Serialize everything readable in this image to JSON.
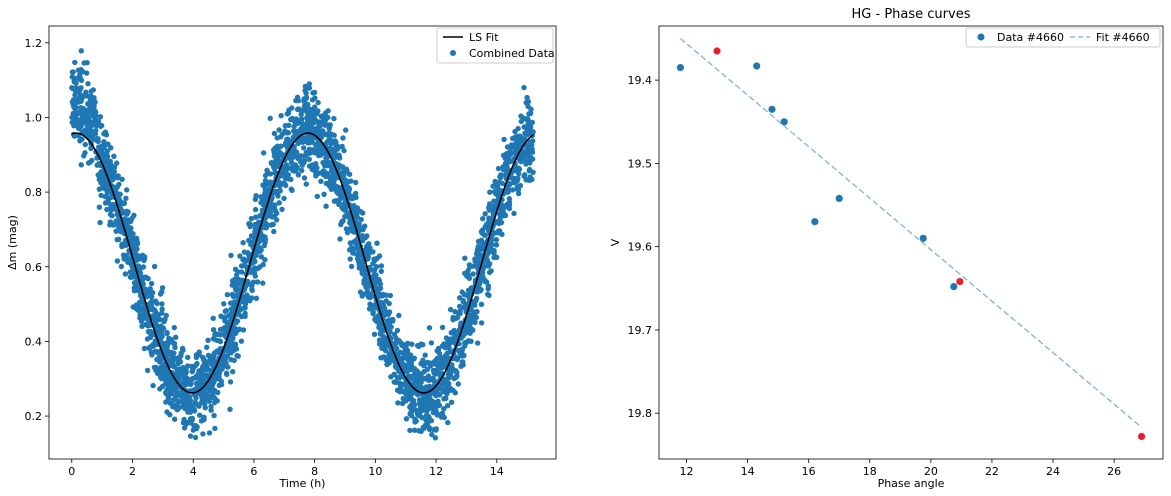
{
  "chart_data": [
    {
      "type": "scatter",
      "title": "",
      "xlabel": "Time (h)",
      "ylabel": "Δm (mag)",
      "xlim": [
        -0.75,
        15.95
      ],
      "ylim": [
        0.085,
        1.245
      ],
      "xticks": [
        "0",
        "2",
        "4",
        "6",
        "8",
        "10",
        "12",
        "14"
      ],
      "yticks": [
        "0.2",
        "0.4",
        "0.6",
        "0.8",
        "1.0",
        "1.2"
      ],
      "grid": false,
      "legend_position": "top-right",
      "legend": [
        "LS Fit",
        "Combined Data"
      ],
      "colors": {
        "data": "#1f77b4",
        "fit": "#000000"
      },
      "fit": {
        "name": "LS Fit",
        "model": "sinusoid",
        "t_min": 0.0,
        "t_max": 15.2,
        "mean": 0.61,
        "amplitude": 0.348,
        "period_h": 7.63,
        "max_at_h": 0.15
      },
      "data_series": {
        "name": "Combined Data",
        "t_range": [
          0.0,
          15.2
        ],
        "scatter_sd": 0.055,
        "approx_points": 3400
      }
    },
    {
      "type": "scatter",
      "title": "HG - Phase curves",
      "xlabel": "Phase angle",
      "ylabel": "V",
      "xlim": [
        11.1,
        27.6
      ],
      "ylim": [
        19.855,
        19.335
      ],
      "y_inverted": true,
      "xticks": [
        "12",
        "14",
        "16",
        "18",
        "20",
        "22",
        "24",
        "26"
      ],
      "yticks": [
        "19.4",
        "19.5",
        "19.6",
        "19.7",
        "19.8"
      ],
      "grid": false,
      "legend_position": "top-right",
      "legend": [
        "Data #4660",
        "Fit #4660"
      ],
      "colors": {
        "data": "#1f77b4",
        "fit": "#7fb2db",
        "highlight": "#e8202a"
      },
      "series": [
        {
          "name": "Data #4660",
          "points": [
            {
              "x": 11.8,
              "y": 19.385
            },
            {
              "x": 13.0,
              "y": 19.365,
              "highlight": true
            },
            {
              "x": 14.3,
              "y": 19.383
            },
            {
              "x": 14.8,
              "y": 19.435
            },
            {
              "x": 15.2,
              "y": 19.45
            },
            {
              "x": 16.2,
              "y": 19.57
            },
            {
              "x": 17.0,
              "y": 19.542
            },
            {
              "x": 19.75,
              "y": 19.59
            },
            {
              "x": 20.75,
              "y": 19.648
            },
            {
              "x": 20.95,
              "y": 19.642,
              "highlight": true
            },
            {
              "x": 26.9,
              "y": 19.828,
              "highlight": true
            }
          ]
        },
        {
          "name": "Fit #4660",
          "line": [
            {
              "x": 11.8,
              "y": 19.35
            },
            {
              "x": 26.9,
              "y": 19.817
            }
          ]
        }
      ]
    }
  ]
}
